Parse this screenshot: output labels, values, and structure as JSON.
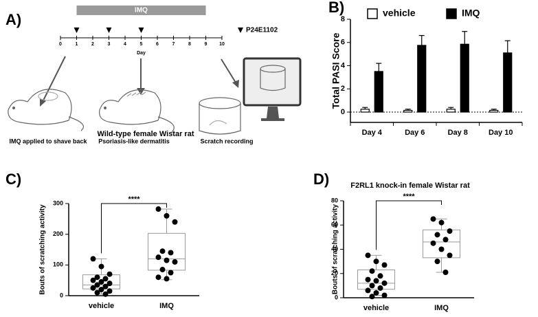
{
  "diagram": {
    "label": "A)",
    "bar_label": "IMQ",
    "bar_days": [
      1,
      9
    ],
    "days": [
      0,
      1,
      2,
      3,
      4,
      5,
      6,
      7,
      8,
      9,
      10
    ],
    "axis_label": "Day",
    "marker_days": [
      1,
      3,
      5
    ],
    "marker_legend": "P24E1102",
    "captions": [
      "IMQ applied to shave back",
      "Psoriasis-like dermatitis",
      "Scratch recording"
    ]
  },
  "chart_data": [
    {
      "type": "bar",
      "panel_label": "B)",
      "ylabel": "Total PASI Score",
      "categories": [
        "Day 4",
        "Day 6",
        "Day 8",
        "Day 10"
      ],
      "series": [
        {
          "name": "vehicle",
          "color": "#ffffff",
          "values": [
            0.25,
            0.15,
            0.25,
            0.15
          ],
          "errors": [
            0.15,
            0.1,
            0.15,
            0.1
          ]
        },
        {
          "name": "IMQ",
          "color": "#000000",
          "values": [
            3.5,
            5.75,
            5.85,
            5.1
          ],
          "errors": [
            0.7,
            0.85,
            1.1,
            1.05
          ]
        }
      ],
      "ylim": [
        0,
        8
      ],
      "yticks": [
        0,
        2,
        4,
        6,
        8
      ]
    },
    {
      "type": "box",
      "panel_label": "C)",
      "title": "Wild-type female Wistar rat",
      "ylabel": "Bouts of scratching activity",
      "categories": [
        "vehicle",
        "IMQ"
      ],
      "boxes": [
        {
          "whisker_low": 5,
          "q1": 22,
          "median": 35,
          "q3": 68,
          "whisker_high": 120
        },
        {
          "whisker_low": 52,
          "q1": 83,
          "median": 120,
          "q3": 203,
          "whisker_high": 282
        }
      ],
      "points": [
        [
          120,
          95,
          70,
          60,
          55,
          50,
          45,
          40,
          35,
          30,
          25,
          20,
          15,
          10,
          5
        ],
        [
          282,
          260,
          240,
          145,
          140,
          125,
          115,
          110,
          85,
          75,
          60,
          55
        ]
      ],
      "annotation": "****",
      "ylim": [
        0,
        300
      ],
      "yticks": [
        0,
        100,
        200,
        300
      ]
    },
    {
      "type": "box",
      "panel_label": "D)",
      "title": "F2RL1 knock-in female Wistar rat",
      "ylabel": "Bouts of scratching activity",
      "categories": [
        "vehicle",
        "IMQ"
      ],
      "boxes": [
        {
          "whisker_low": 2,
          "q1": 7,
          "median": 12,
          "q3": 23,
          "whisker_high": 35
        },
        {
          "whisker_low": 21,
          "q1": 33,
          "median": 46,
          "q3": 56,
          "whisker_high": 65
        }
      ],
      "points": [
        [
          35,
          30,
          27,
          22,
          18,
          15,
          14,
          12,
          10,
          8,
          6,
          4,
          2,
          1
        ],
        [
          65,
          62,
          55,
          52,
          48,
          45,
          40,
          35,
          30,
          21
        ]
      ],
      "annotation": "****",
      "ylim": [
        0,
        80
      ],
      "yticks": [
        0,
        20,
        40,
        60,
        80
      ]
    }
  ]
}
